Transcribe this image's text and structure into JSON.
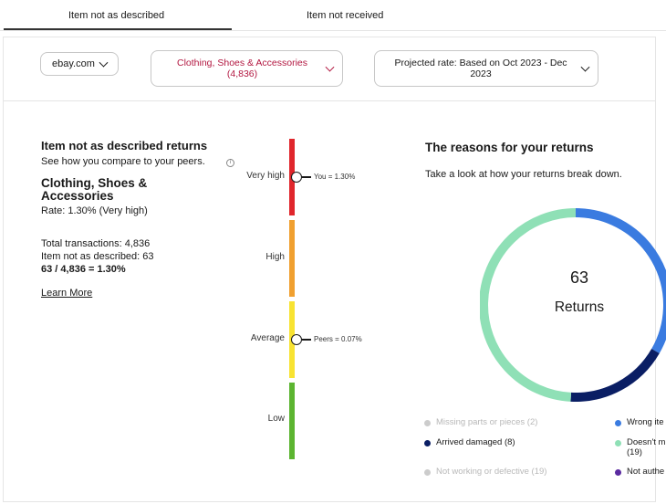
{
  "tabs": [
    {
      "label": "Item not as described",
      "active": true
    },
    {
      "label": "Item not received",
      "active": false
    }
  ],
  "filters": {
    "site": "ebay.com",
    "category": "Clothing, Shoes & Accessories (4,836)",
    "projected_rate": "Projected rate: Based on Oct 2023 - Dec 2023"
  },
  "summary": {
    "title": "Item not as described returns",
    "subtitle": "See how you compare to your peers.",
    "info_icon": "info-icon",
    "category": "Clothing, Shoes & Accessories",
    "rate": "Rate: 1.30% (Very high)",
    "total_transactions": "Total transactions: 4,836",
    "inad_count": "Item not as described: 63",
    "formula": "63 / 4,836 = 1.30%",
    "learn_more": "Learn More"
  },
  "gauge": {
    "levels": [
      "Very high",
      "High",
      "Average",
      "Low"
    ],
    "colors": {
      "very_high": "#e0262c",
      "high": "#f0a030",
      "average": "#f8e332",
      "low": "#5cb531"
    },
    "you_label": "You = 1.30%",
    "peers_label": "Peers = 0.07%"
  },
  "reasons": {
    "title": "The reasons for your returns",
    "subtitle": "Take a look at how your returns break down.",
    "total": "63",
    "total_label": "Returns",
    "legend": [
      {
        "label": "Missing parts or pieces (2)",
        "count": 2,
        "color": "#cccccc",
        "muted": true
      },
      {
        "label": "Arrived damaged (8)",
        "count": 8,
        "color": "#0a1e64",
        "muted": false
      },
      {
        "label": "Not working or defective (19)",
        "count": 19,
        "color": "#cccccc",
        "muted": true
      },
      {
        "label": "Wrong ite",
        "color": "#3a7be0",
        "muted": false
      },
      {
        "label": "Doesn't m",
        "label_line2": "(19)",
        "color": "#8fe0b6",
        "muted": false
      },
      {
        "label": "Not authe",
        "color": "#5a2aa0",
        "muted": false
      }
    ]
  }
}
